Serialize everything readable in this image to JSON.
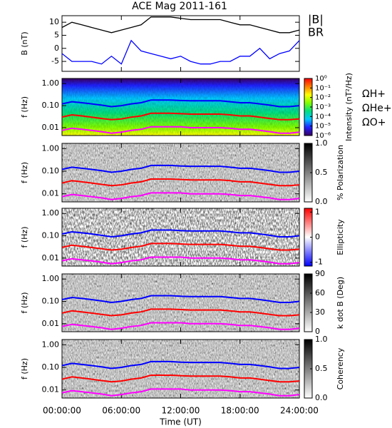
{
  "chart_data": [
    {
      "type": "line",
      "title": "ACE Mag 2011-161",
      "y_label": "B (nT)",
      "x": [
        0,
        1,
        2,
        3,
        4,
        5,
        6,
        7,
        8,
        9,
        10,
        11,
        12,
        13,
        14,
        15,
        16,
        17,
        18,
        19,
        20,
        21,
        22,
        23,
        24
      ],
      "ylim": [
        -8.8,
        12.5
      ],
      "yticks": [
        -5,
        0,
        5,
        10
      ],
      "series": [
        {
          "name": "|B|",
          "color": "#000000",
          "values": [
            8,
            10,
            9,
            8,
            7,
            6,
            7,
            8,
            9,
            12,
            12,
            12,
            11.5,
            11,
            11,
            11,
            11,
            10,
            9,
            9,
            8,
            7,
            6,
            6,
            7
          ]
        },
        {
          "name": "BR",
          "color": "#0000ff",
          "values": [
            -2,
            -5,
            -5,
            -5,
            -6,
            -3,
            -6,
            3,
            -1,
            -2,
            -3,
            -4,
            -3,
            -5,
            -6,
            -6,
            -5,
            -5,
            -3,
            -3,
            0,
            -4,
            -2,
            -1,
            3
          ]
        }
      ]
    },
    {
      "type": "spectrogram",
      "y_label": "f (Hz)",
      "ylog": true,
      "ylim": [
        0.0044,
        1.7
      ],
      "yticks": [
        {
          "value": 0.01,
          "label": "0.01"
        },
        {
          "value": 0.1,
          "label": "0.10"
        },
        {
          "value": 1,
          "label": "1.00"
        }
      ],
      "series": [
        {
          "name": "ΩH+",
          "color": "#0000ff",
          "values": [
            0.12,
            0.15,
            0.135,
            0.12,
            0.105,
            0.09,
            0.1,
            0.12,
            0.135,
            0.18,
            0.18,
            0.18,
            0.17,
            0.165,
            0.165,
            0.165,
            0.165,
            0.15,
            0.135,
            0.135,
            0.12,
            0.105,
            0.09,
            0.09,
            0.1
          ]
        },
        {
          "name": "ΩHe+",
          "color": "#ff0000",
          "values": [
            0.03,
            0.038,
            0.034,
            0.03,
            0.026,
            0.023,
            0.025,
            0.03,
            0.034,
            0.045,
            0.045,
            0.045,
            0.043,
            0.041,
            0.041,
            0.041,
            0.041,
            0.038,
            0.034,
            0.034,
            0.03,
            0.026,
            0.023,
            0.023,
            0.025
          ]
        },
        {
          "name": "ΩO+",
          "color": "#ff00ff",
          "values": [
            0.0075,
            0.0094,
            0.0084,
            0.0075,
            0.0066,
            0.0056,
            0.0063,
            0.0075,
            0.0084,
            0.011,
            0.011,
            0.011,
            0.011,
            0.01,
            0.01,
            0.01,
            0.01,
            0.0094,
            0.0084,
            0.0084,
            0.0075,
            0.0066,
            0.0056,
            0.0056,
            0.0063
          ]
        }
      ],
      "colorbar": {
        "label": "Intensity (nT²/Hz)",
        "log": true,
        "lim": [
          1e-06,
          1
        ],
        "ticks": [
          {
            "value": 1,
            "label": "10⁰"
          },
          {
            "value": 0.1,
            "label": "10⁻¹"
          },
          {
            "value": 0.01,
            "label": "10⁻²"
          },
          {
            "value": 0.001,
            "label": "10⁻³"
          },
          {
            "value": 0.0001,
            "label": "10⁻⁴"
          },
          {
            "value": 1e-05,
            "label": "10⁻⁵"
          },
          {
            "value": 1e-06,
            "label": "10⁻⁶"
          }
        ],
        "colormap": [
          "#3a0060",
          "#2020ff",
          "#00c8ff",
          "#00e080",
          "#80ff00",
          "#ffff00",
          "#ff8000",
          "#ff0000"
        ]
      }
    },
    {
      "type": "spectrogram",
      "y_label": "f (Hz)",
      "ylog": true,
      "ylim": [
        0.0044,
        1.7
      ],
      "yticks": [
        {
          "value": 0.01,
          "label": "0.01"
        },
        {
          "value": 0.1,
          "label": "0.10"
        },
        {
          "value": 1,
          "label": "1.00"
        }
      ],
      "colorbar": {
        "label": "% Polarization",
        "lim": [
          0,
          1
        ],
        "ticks": [
          {
            "value": 0,
            "label": "0.0"
          },
          {
            "value": 0.5,
            "label": "0.5"
          },
          {
            "value": 1,
            "label": "1.0"
          }
        ],
        "colormap": [
          "#ffffff",
          "#000000"
        ]
      }
    },
    {
      "type": "spectrogram",
      "y_label": "f (Hz)",
      "ylog": true,
      "ylim": [
        0.0044,
        1.7
      ],
      "yticks": [
        {
          "value": 0.01,
          "label": "0.01"
        },
        {
          "value": 0.1,
          "label": "0.10"
        },
        {
          "value": 1,
          "label": "1.00"
        }
      ],
      "colorbar": {
        "label": "Ellipticity",
        "lim": [
          -1.15,
          1.15
        ],
        "ticks": [
          -1,
          0,
          1
        ],
        "colormap": [
          "#0000ff",
          "#ffffff",
          "#ff0000"
        ]
      }
    },
    {
      "type": "spectrogram",
      "y_label": "f (Hz)",
      "ylog": true,
      "ylim": [
        0.0044,
        1.7
      ],
      "yticks": [
        {
          "value": 0.01,
          "label": "0.01"
        },
        {
          "value": 0.1,
          "label": "0.10"
        },
        {
          "value": 1,
          "label": "1.00"
        }
      ],
      "colorbar": {
        "label": "k dot B (Deg)",
        "lim": [
          0,
          90
        ],
        "ticks": [
          0,
          30,
          60,
          90
        ],
        "colormap": [
          "#ffffff",
          "#000000"
        ]
      }
    },
    {
      "type": "spectrogram",
      "y_label": "f (Hz)",
      "ylog": true,
      "ylim": [
        0.0044,
        1.7
      ],
      "yticks": [
        {
          "value": 0.01,
          "label": "0.01"
        },
        {
          "value": 0.1,
          "label": "0.10"
        },
        {
          "value": 1,
          "label": "1.00"
        }
      ],
      "colorbar": {
        "label": "Coherency",
        "lim": [
          0,
          1
        ],
        "ticks": [
          {
            "value": 0,
            "label": "0.0"
          },
          {
            "value": 0.5,
            "label": "0.5"
          },
          {
            "value": 1,
            "label": "1.0"
          }
        ],
        "colormap": [
          "#ffffff",
          "#000000"
        ]
      },
      "x_label": "Time (UT)",
      "xlim": [
        0,
        24
      ],
      "xticks": [
        {
          "value": 0,
          "label": "00:00:00"
        },
        {
          "value": 6,
          "label": "06:00:00"
        },
        {
          "value": 12,
          "label": "12:00:00"
        },
        {
          "value": 18,
          "label": "18:00:00"
        },
        {
          "value": 24,
          "label": "24:00:00"
        }
      ]
    }
  ]
}
